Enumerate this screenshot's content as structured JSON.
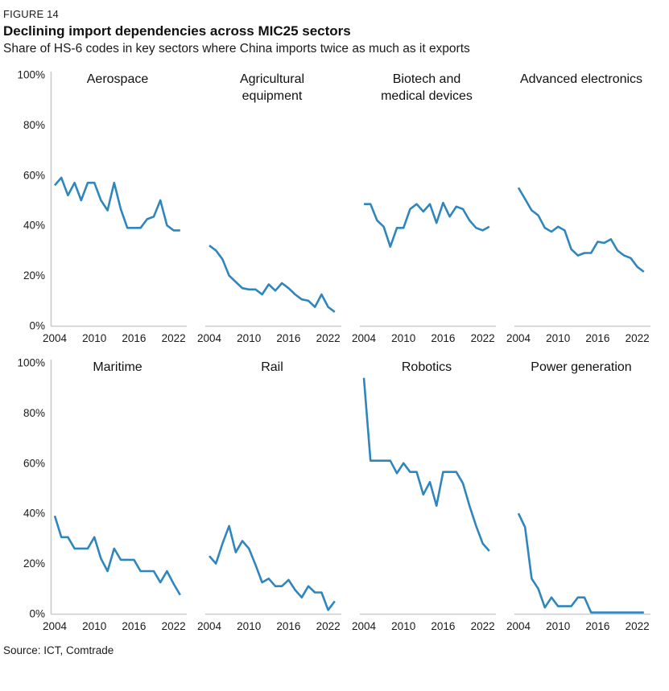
{
  "header": {
    "figure_label": "FIGURE 14",
    "title": "Declining import dependencies across MIC25 sectors",
    "subtitle": "Share of HS-6 codes in key sectors where China imports twice as much as it exports"
  },
  "source": "Source: ICT, Comtrade",
  "colors": {
    "line": "#2e86bd",
    "axis": "#cbcbcb",
    "text": "#1a1a1a"
  },
  "chart_data": {
    "type": "line",
    "title": "Declining import dependencies across MIC25 sectors",
    "x": [
      2004,
      2005,
      2006,
      2007,
      2008,
      2009,
      2010,
      2011,
      2012,
      2013,
      2014,
      2015,
      2016,
      2017,
      2018,
      2019,
      2020,
      2021,
      2022,
      2023
    ],
    "x_ticks": [
      "2004",
      "2010",
      "2016",
      "2022"
    ],
    "x_tick_years": [
      2004,
      2010,
      2016,
      2022
    ],
    "ylim": [
      0,
      100
    ],
    "y_ticks": [
      "100%",
      "80%",
      "60%",
      "40%",
      "20%",
      "0%"
    ],
    "y_tick_values": [
      100,
      80,
      60,
      40,
      20,
      0
    ],
    "grid": false,
    "legend": "none",
    "layout": "2 rows x 4 columns of small multiples; y-axis labels only on left of each row",
    "series": [
      {
        "name": "Aerospace",
        "panel": 1,
        "show_y_axis": true,
        "values": [
          56,
          59,
          52,
          57,
          50,
          57,
          57,
          50,
          46,
          57,
          46.5,
          39,
          39,
          39,
          42.5,
          43.5,
          50,
          40,
          38,
          38
        ]
      },
      {
        "name": "Agricultural\nequipment",
        "panel": 2,
        "show_y_axis": false,
        "values": [
          32,
          30,
          26.5,
          20,
          17.5,
          15,
          14.5,
          14.5,
          12.5,
          16.5,
          14,
          17,
          15,
          12.5,
          10.5,
          10,
          7.5,
          12.5,
          7.5,
          5.5
        ]
      },
      {
        "name": "Biotech and\nmedical devices",
        "panel": 3,
        "show_y_axis": false,
        "values": [
          48.5,
          48.5,
          42,
          39.5,
          31.5,
          39,
          39,
          46.5,
          48.5,
          45.5,
          48.5,
          41,
          49,
          43.5,
          47.5,
          46.5,
          42,
          39,
          38,
          39.5
        ]
      },
      {
        "name": "Advanced electronics",
        "panel": 4,
        "show_y_axis": false,
        "values": [
          55,
          50.5,
          46,
          44,
          39,
          37.5,
          39.5,
          38,
          30.5,
          28,
          29,
          29,
          33.5,
          33,
          34.5,
          30,
          28,
          27,
          23.5,
          21.5
        ]
      },
      {
        "name": "Maritime",
        "panel": 5,
        "show_y_axis": true,
        "values": [
          39,
          30.5,
          30.5,
          26,
          26,
          26,
          30.5,
          22,
          17,
          26,
          21.5,
          21.5,
          21.5,
          17,
          17,
          17,
          12.5,
          17,
          12,
          7.5
        ]
      },
      {
        "name": "Rail",
        "panel": 6,
        "show_y_axis": false,
        "values": [
          23,
          20,
          28,
          35,
          24.5,
          29,
          26,
          19.5,
          12.5,
          14,
          11,
          11,
          13.5,
          9.5,
          6.5,
          11,
          8.5,
          8.5,
          1.5,
          5
        ]
      },
      {
        "name": "Robotics",
        "panel": 7,
        "show_y_axis": false,
        "values": [
          94,
          61,
          61,
          61,
          61,
          56,
          60,
          56.5,
          56.5,
          47.5,
          52.5,
          43,
          56.5,
          56.5,
          56.5,
          52,
          43,
          35,
          28,
          25
        ]
      },
      {
        "name": "Power generation",
        "panel": 8,
        "show_y_axis": false,
        "values": [
          40,
          34.5,
          14,
          10,
          2.5,
          6.5,
          3,
          3,
          3,
          6.5,
          6.5,
          0.5,
          0.5,
          0.5,
          0.5,
          0.5,
          0.5,
          0.5,
          0.5,
          0.5
        ]
      }
    ]
  }
}
